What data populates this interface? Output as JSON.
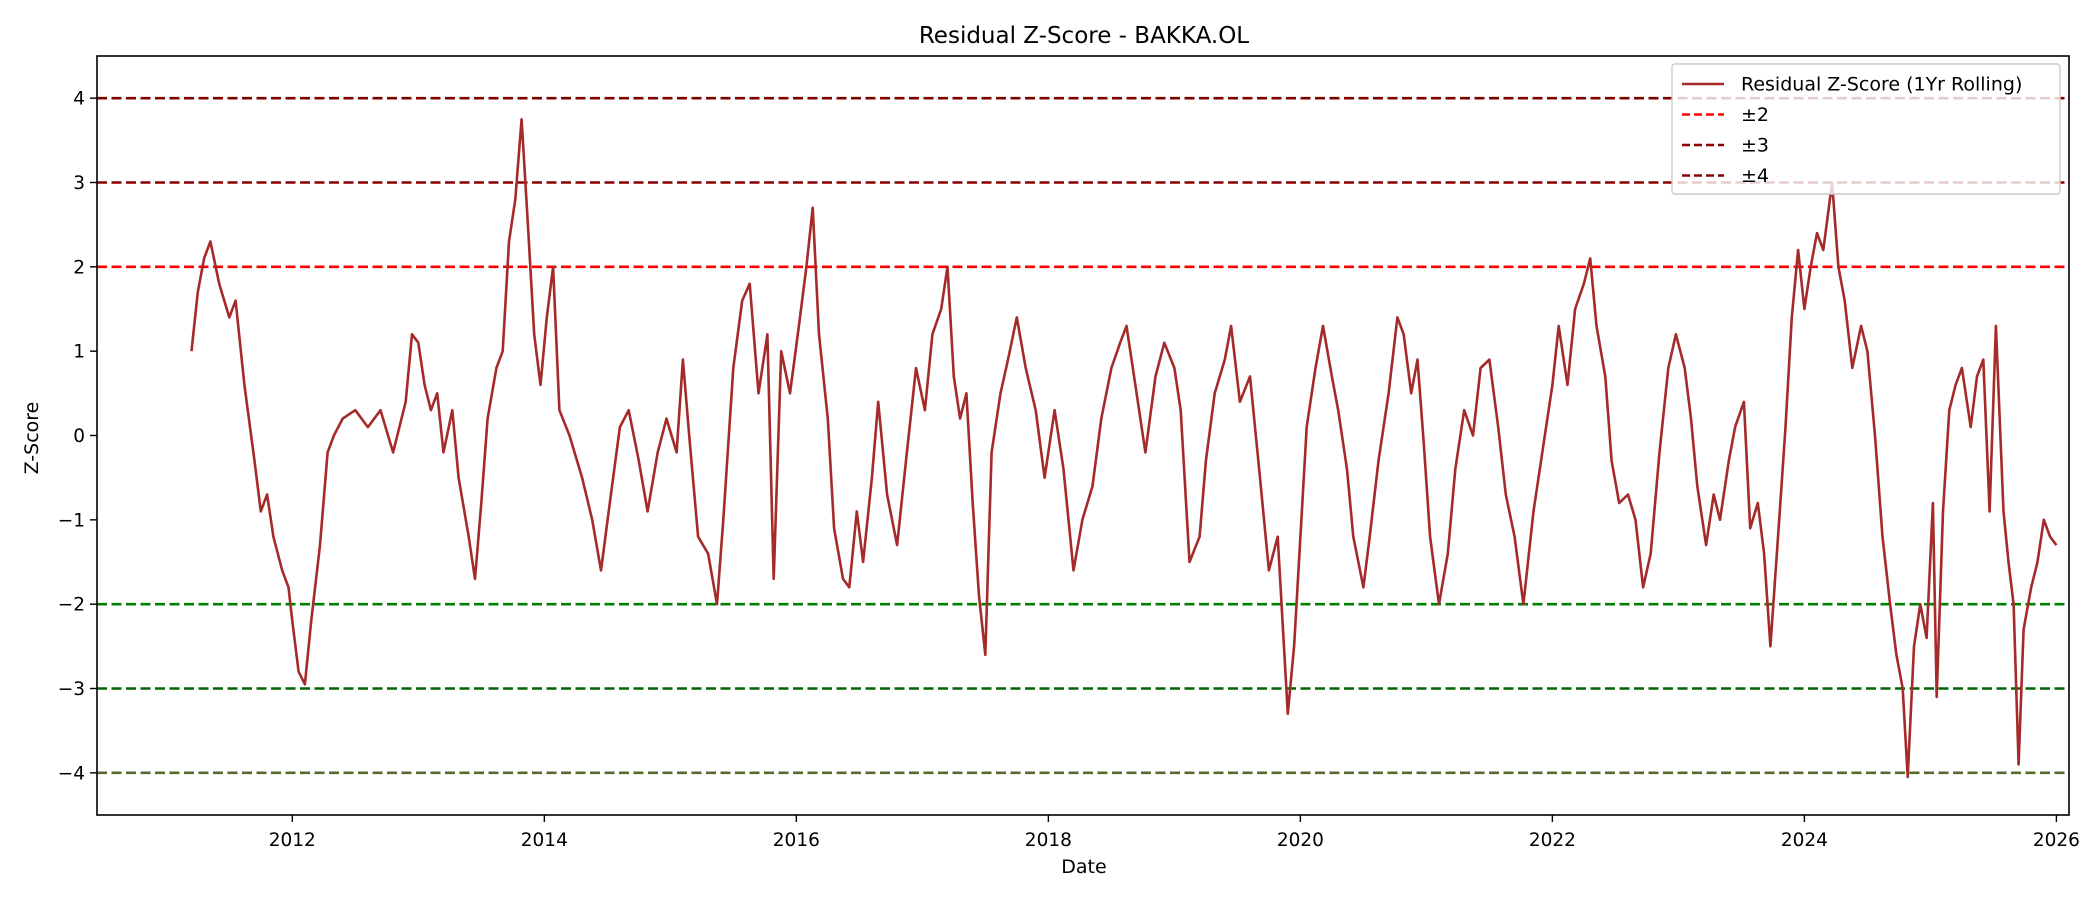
{
  "chart_data": {
    "type": "line",
    "title": "Residual Z-Score - BAKKA.OL",
    "xlabel": "Date",
    "ylabel": "Z-Score",
    "xlim": [
      2010.45,
      2026.1
    ],
    "ylim": [
      -4.5,
      4.5
    ],
    "x_ticks": [
      2012,
      2014,
      2016,
      2018,
      2020,
      2022,
      2024,
      2026
    ],
    "y_ticks": [
      4,
      3,
      2,
      1,
      0,
      -1,
      -2,
      -3,
      -4
    ],
    "y_tick_labels": [
      "4",
      "3",
      "2",
      "1",
      "0",
      "−1",
      "−2",
      "−3",
      "−4"
    ],
    "grid": false,
    "legend_position": "top-right",
    "colors": {
      "series": "#a52a2a",
      "plus_minus_2_upper": "#ff0000",
      "plus_minus_2_lower": "#008000",
      "plus_minus_3_upper": "#8b0000",
      "plus_minus_3_lower": "#006400",
      "plus_minus_4_upper": "#800000",
      "plus_minus_4_lower": "#556b2f"
    },
    "reference_lines": [
      {
        "label": "±2",
        "y": [
          2,
          -2
        ]
      },
      {
        "label": "±3",
        "y": [
          3,
          -3
        ]
      },
      {
        "label": "±4",
        "y": [
          4,
          -4
        ]
      }
    ],
    "series": [
      {
        "name": "Residual Z-Score (1Yr Rolling)",
        "points": [
          [
            2011.2,
            1.0
          ],
          [
            2011.25,
            1.7
          ],
          [
            2011.3,
            2.1
          ],
          [
            2011.35,
            2.3
          ],
          [
            2011.42,
            1.8
          ],
          [
            2011.5,
            1.4
          ],
          [
            2011.55,
            1.6
          ],
          [
            2011.62,
            0.6
          ],
          [
            2011.7,
            -0.3
          ],
          [
            2011.75,
            -0.9
          ],
          [
            2011.8,
            -0.7
          ],
          [
            2011.85,
            -1.2
          ],
          [
            2011.92,
            -1.6
          ],
          [
            2011.97,
            -1.8
          ],
          [
            2012.0,
            -2.2
          ],
          [
            2012.05,
            -2.8
          ],
          [
            2012.1,
            -2.95
          ],
          [
            2012.15,
            -2.2
          ],
          [
            2012.22,
            -1.3
          ],
          [
            2012.28,
            -0.2
          ],
          [
            2012.33,
            0.0
          ],
          [
            2012.4,
            0.2
          ],
          [
            2012.5,
            0.3
          ],
          [
            2012.6,
            0.1
          ],
          [
            2012.7,
            0.3
          ],
          [
            2012.8,
            -0.2
          ],
          [
            2012.9,
            0.4
          ],
          [
            2012.95,
            1.2
          ],
          [
            2013.0,
            1.1
          ],
          [
            2013.05,
            0.6
          ],
          [
            2013.1,
            0.3
          ],
          [
            2013.15,
            0.5
          ],
          [
            2013.2,
            -0.2
          ],
          [
            2013.27,
            0.3
          ],
          [
            2013.32,
            -0.5
          ],
          [
            2013.4,
            -1.2
          ],
          [
            2013.45,
            -1.7
          ],
          [
            2013.5,
            -0.8
          ],
          [
            2013.55,
            0.2
          ],
          [
            2013.62,
            0.8
          ],
          [
            2013.67,
            1.0
          ],
          [
            2013.72,
            2.3
          ],
          [
            2013.77,
            2.8
          ],
          [
            2013.82,
            3.75
          ],
          [
            2013.87,
            2.5
          ],
          [
            2013.92,
            1.2
          ],
          [
            2013.97,
            0.6
          ],
          [
            2014.02,
            1.4
          ],
          [
            2014.07,
            2.0
          ],
          [
            2014.12,
            0.3
          ],
          [
            2014.2,
            0.0
          ],
          [
            2014.3,
            -0.5
          ],
          [
            2014.38,
            -1.0
          ],
          [
            2014.45,
            -1.6
          ],
          [
            2014.52,
            -0.8
          ],
          [
            2014.6,
            0.1
          ],
          [
            2014.67,
            0.3
          ],
          [
            2014.75,
            -0.3
          ],
          [
            2014.82,
            -0.9
          ],
          [
            2014.9,
            -0.2
          ],
          [
            2014.97,
            0.2
          ],
          [
            2015.05,
            -0.2
          ],
          [
            2015.1,
            0.9
          ],
          [
            2015.15,
            0.0
          ],
          [
            2015.22,
            -1.2
          ],
          [
            2015.3,
            -1.4
          ],
          [
            2015.37,
            -2.0
          ],
          [
            2015.42,
            -1.0
          ],
          [
            2015.5,
            0.8
          ],
          [
            2015.57,
            1.6
          ],
          [
            2015.63,
            1.8
          ],
          [
            2015.7,
            0.5
          ],
          [
            2015.77,
            1.2
          ],
          [
            2015.82,
            -1.7
          ],
          [
            2015.88,
            1.0
          ],
          [
            2015.95,
            0.5
          ],
          [
            2016.02,
            1.3
          ],
          [
            2016.08,
            2.0
          ],
          [
            2016.13,
            2.7
          ],
          [
            2016.18,
            1.2
          ],
          [
            2016.25,
            0.2
          ],
          [
            2016.3,
            -1.1
          ],
          [
            2016.37,
            -1.7
          ],
          [
            2016.42,
            -1.8
          ],
          [
            2016.48,
            -0.9
          ],
          [
            2016.53,
            -1.5
          ],
          [
            2016.6,
            -0.5
          ],
          [
            2016.65,
            0.4
          ],
          [
            2016.72,
            -0.7
          ],
          [
            2016.8,
            -1.3
          ],
          [
            2016.87,
            -0.3
          ],
          [
            2016.95,
            0.8
          ],
          [
            2017.02,
            0.3
          ],
          [
            2017.08,
            1.2
          ],
          [
            2017.15,
            1.5
          ],
          [
            2017.2,
            2.0
          ],
          [
            2017.25,
            0.7
          ],
          [
            2017.3,
            0.2
          ],
          [
            2017.35,
            0.5
          ],
          [
            2017.4,
            -0.8
          ],
          [
            2017.45,
            -1.9
          ],
          [
            2017.5,
            -2.6
          ],
          [
            2017.55,
            -0.2
          ],
          [
            2017.62,
            0.5
          ],
          [
            2017.68,
            0.9
          ],
          [
            2017.75,
            1.4
          ],
          [
            2017.82,
            0.8
          ],
          [
            2017.9,
            0.3
          ],
          [
            2017.97,
            -0.5
          ],
          [
            2018.05,
            0.3
          ],
          [
            2018.12,
            -0.4
          ],
          [
            2018.2,
            -1.6
          ],
          [
            2018.27,
            -1.0
          ],
          [
            2018.35,
            -0.6
          ],
          [
            2018.42,
            0.2
          ],
          [
            2018.5,
            0.8
          ],
          [
            2018.57,
            1.1
          ],
          [
            2018.62,
            1.3
          ],
          [
            2018.7,
            0.5
          ],
          [
            2018.77,
            -0.2
          ],
          [
            2018.85,
            0.7
          ],
          [
            2018.92,
            1.1
          ],
          [
            2019.0,
            0.8
          ],
          [
            2019.05,
            0.3
          ],
          [
            2019.12,
            -1.5
          ],
          [
            2019.2,
            -1.2
          ],
          [
            2019.25,
            -0.3
          ],
          [
            2019.32,
            0.5
          ],
          [
            2019.4,
            0.9
          ],
          [
            2019.45,
            1.3
          ],
          [
            2019.52,
            0.4
          ],
          [
            2019.6,
            0.7
          ],
          [
            2019.68,
            -0.5
          ],
          [
            2019.75,
            -1.6
          ],
          [
            2019.82,
            -1.2
          ],
          [
            2019.9,
            -3.3
          ],
          [
            2019.95,
            -2.5
          ],
          [
            2020.0,
            -1.2
          ],
          [
            2020.05,
            0.1
          ],
          [
            2020.12,
            0.8
          ],
          [
            2020.18,
            1.3
          ],
          [
            2020.25,
            0.7
          ],
          [
            2020.3,
            0.3
          ],
          [
            2020.37,
            -0.4
          ],
          [
            2020.42,
            -1.2
          ],
          [
            2020.5,
            -1.8
          ],
          [
            2020.55,
            -1.2
          ],
          [
            2020.62,
            -0.3
          ],
          [
            2020.7,
            0.5
          ],
          [
            2020.77,
            1.4
          ],
          [
            2020.82,
            1.2
          ],
          [
            2020.88,
            0.5
          ],
          [
            2020.93,
            0.9
          ],
          [
            2020.98,
            -0.1
          ],
          [
            2021.03,
            -1.2
          ],
          [
            2021.1,
            -2.0
          ],
          [
            2021.17,
            -1.4
          ],
          [
            2021.23,
            -0.4
          ],
          [
            2021.3,
            0.3
          ],
          [
            2021.37,
            0.0
          ],
          [
            2021.43,
            0.8
          ],
          [
            2021.5,
            0.9
          ],
          [
            2021.57,
            0.1
          ],
          [
            2021.63,
            -0.7
          ],
          [
            2021.7,
            -1.2
          ],
          [
            2021.77,
            -2.0
          ],
          [
            2021.85,
            -0.9
          ],
          [
            2021.92,
            -0.2
          ],
          [
            2022.0,
            0.6
          ],
          [
            2022.05,
            1.3
          ],
          [
            2022.12,
            0.6
          ],
          [
            2022.18,
            1.5
          ],
          [
            2022.25,
            1.8
          ],
          [
            2022.3,
            2.1
          ],
          [
            2022.35,
            1.3
          ],
          [
            2022.42,
            0.7
          ],
          [
            2022.47,
            -0.3
          ],
          [
            2022.53,
            -0.8
          ],
          [
            2022.6,
            -0.7
          ],
          [
            2022.66,
            -1.0
          ],
          [
            2022.72,
            -1.8
          ],
          [
            2022.78,
            -1.4
          ],
          [
            2022.85,
            -0.2
          ],
          [
            2022.92,
            0.8
          ],
          [
            2022.98,
            1.2
          ],
          [
            2023.05,
            0.8
          ],
          [
            2023.1,
            0.2
          ],
          [
            2023.15,
            -0.6
          ],
          [
            2023.22,
            -1.3
          ],
          [
            2023.28,
            -0.7
          ],
          [
            2023.33,
            -1.0
          ],
          [
            2023.4,
            -0.3
          ],
          [
            2023.45,
            0.1
          ],
          [
            2023.52,
            0.4
          ],
          [
            2023.57,
            -1.1
          ],
          [
            2023.63,
            -0.8
          ],
          [
            2023.68,
            -1.4
          ],
          [
            2023.73,
            -2.5
          ],
          [
            2023.8,
            -1.0
          ],
          [
            2023.85,
            0.1
          ],
          [
            2023.9,
            1.4
          ],
          [
            2023.95,
            2.2
          ],
          [
            2024.0,
            1.5
          ],
          [
            2024.05,
            2.0
          ],
          [
            2024.1,
            2.4
          ],
          [
            2024.15,
            2.2
          ],
          [
            2024.22,
            3.0
          ],
          [
            2024.27,
            2.0
          ],
          [
            2024.32,
            1.6
          ],
          [
            2024.38,
            0.8
          ],
          [
            2024.45,
            1.3
          ],
          [
            2024.5,
            1.0
          ],
          [
            2024.56,
            0.0
          ],
          [
            2024.62,
            -1.2
          ],
          [
            2024.68,
            -2.0
          ],
          [
            2024.73,
            -2.6
          ],
          [
            2024.78,
            -3.0
          ],
          [
            2024.82,
            -4.05
          ],
          [
            2024.87,
            -2.5
          ],
          [
            2024.92,
            -2.0
          ],
          [
            2024.97,
            -2.4
          ],
          [
            2025.02,
            -0.8
          ],
          [
            2025.05,
            -3.1
          ],
          [
            2025.1,
            -0.9
          ],
          [
            2025.15,
            0.3
          ],
          [
            2025.2,
            0.6
          ],
          [
            2025.25,
            0.8
          ],
          [
            2025.32,
            0.1
          ],
          [
            2025.37,
            0.7
          ],
          [
            2025.42,
            0.9
          ],
          [
            2025.47,
            -0.9
          ],
          [
            2025.52,
            1.3
          ],
          [
            2025.58,
            -0.9
          ],
          [
            2025.62,
            -1.5
          ],
          [
            2025.66,
            -2.0
          ],
          [
            2025.7,
            -3.9
          ],
          [
            2025.74,
            -2.3
          ],
          [
            2025.8,
            -1.8
          ],
          [
            2025.85,
            -1.5
          ],
          [
            2025.9,
            -1.0
          ],
          [
            2025.95,
            -1.2
          ],
          [
            2026.0,
            -1.3
          ]
        ]
      }
    ]
  }
}
